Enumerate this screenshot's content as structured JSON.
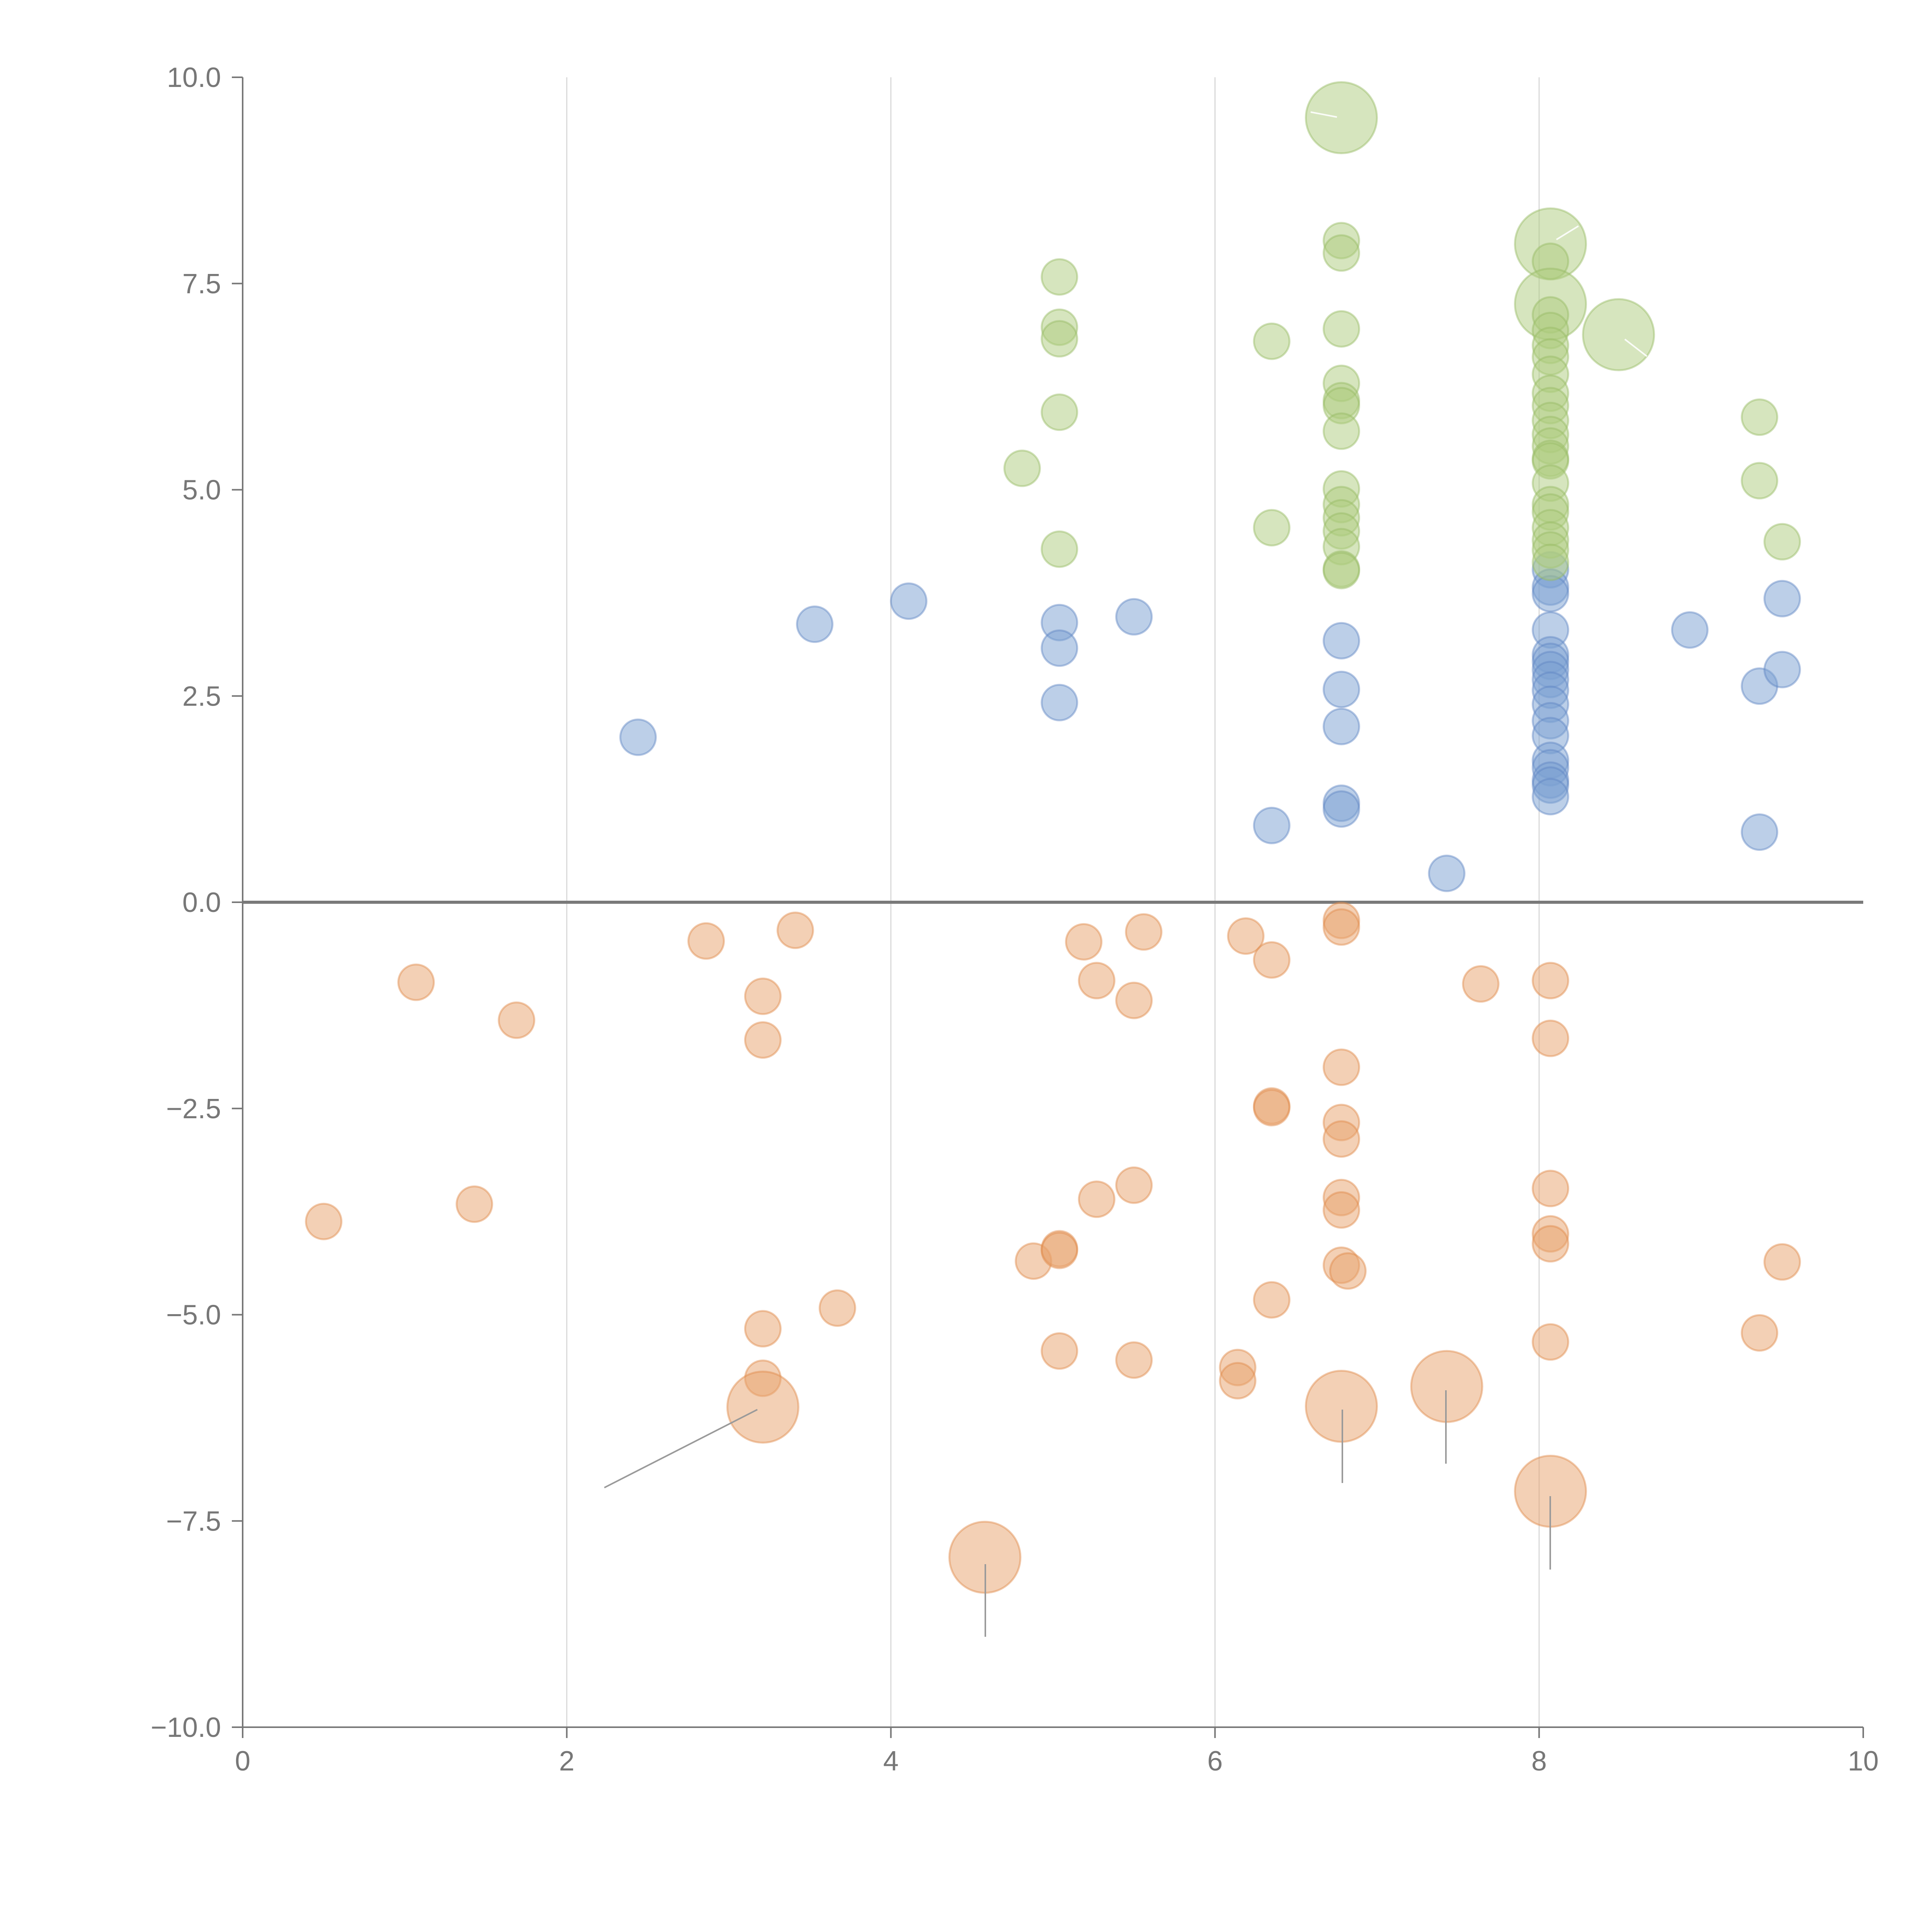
{
  "chart_data": {
    "type": "scatter",
    "title": "",
    "xlabel": "",
    "ylabel": "",
    "xlim": [
      0,
      10
    ],
    "ylim": [
      -10,
      10
    ],
    "grid": "vertical",
    "x_ticks": [
      "0",
      "2",
      "4",
      "6",
      "8",
      "10"
    ],
    "y_ticks": [
      "10.0",
      "7.5",
      "5.0",
      "2.5",
      "0.0",
      "−2.5",
      "−5.0",
      "−7.5",
      "−10.0"
    ],
    "colors": {
      "blue": "#7a9fd1",
      "orange": "#e8a26b",
      "green": "#aecb7e",
      "blue_stroke": "#5f86c4",
      "orange_stroke": "#e0894a",
      "green_stroke": "#97bb63"
    },
    "series": [
      {
        "name": "blue",
        "points": [
          [
            2.44,
            2.0,
            1
          ],
          [
            3.53,
            3.37,
            1
          ],
          [
            4.11,
            3.65,
            1
          ],
          [
            5.04,
            3.39,
            1
          ],
          [
            5.04,
            3.08,
            1
          ],
          [
            5.04,
            2.42,
            1
          ],
          [
            5.5,
            3.46,
            1
          ],
          [
            6.35,
            0.93,
            1
          ],
          [
            6.78,
            3.17,
            1
          ],
          [
            6.78,
            2.58,
            1
          ],
          [
            6.78,
            2.13,
            1
          ],
          [
            6.78,
            1.2,
            1
          ],
          [
            6.78,
            1.13,
            1
          ],
          [
            7.43,
            0.35,
            1
          ],
          [
            8.07,
            4.03,
            1
          ],
          [
            8.07,
            3.82,
            1
          ],
          [
            8.07,
            3.74,
            1
          ],
          [
            8.07,
            3.3,
            1
          ],
          [
            8.07,
            3.0,
            1
          ],
          [
            8.07,
            2.92,
            1
          ],
          [
            8.07,
            2.82,
            1
          ],
          [
            8.07,
            2.7,
            1
          ],
          [
            8.07,
            2.57,
            1
          ],
          [
            8.07,
            2.4,
            1
          ],
          [
            8.07,
            2.2,
            1
          ],
          [
            8.07,
            2.02,
            1
          ],
          [
            8.07,
            1.72,
            1
          ],
          [
            8.07,
            1.63,
            1
          ],
          [
            8.07,
            1.48,
            1
          ],
          [
            8.07,
            1.42,
            1
          ],
          [
            8.07,
            1.28,
            1
          ],
          [
            8.93,
            3.3,
            1
          ],
          [
            9.36,
            2.62,
            1
          ],
          [
            9.36,
            0.85,
            1
          ],
          [
            9.5,
            3.68,
            1
          ],
          [
            9.5,
            2.82,
            1
          ]
        ]
      },
      {
        "name": "orange",
        "points": [
          [
            0.5,
            -3.87,
            1
          ],
          [
            1.07,
            -0.97,
            1
          ],
          [
            1.43,
            -3.66,
            1
          ],
          [
            1.69,
            -1.43,
            1
          ],
          [
            2.86,
            -0.47,
            1
          ],
          [
            3.21,
            -1.14,
            1
          ],
          [
            3.21,
            -1.67,
            1
          ],
          [
            3.41,
            -0.34,
            1
          ],
          [
            3.21,
            -5.17,
            1
          ],
          [
            3.21,
            -5.77,
            1
          ],
          [
            3.21,
            -6.12,
            3
          ],
          [
            3.67,
            -4.92,
            1
          ],
          [
            4.58,
            -7.94,
            3
          ],
          [
            4.88,
            -4.35,
            1
          ],
          [
            5.04,
            -4.2,
            1
          ],
          [
            5.04,
            -4.22,
            1
          ],
          [
            5.04,
            -5.44,
            1
          ],
          [
            5.19,
            -0.48,
            1
          ],
          [
            5.27,
            -0.95,
            1
          ],
          [
            5.27,
            -3.6,
            1
          ],
          [
            5.5,
            -1.19,
            1
          ],
          [
            5.5,
            -3.43,
            1
          ],
          [
            5.5,
            -5.55,
            1
          ],
          [
            5.56,
            -0.36,
            1
          ],
          [
            6.14,
            -5.64,
            1
          ],
          [
            6.14,
            -5.8,
            1
          ],
          [
            6.19,
            -0.41,
            1
          ],
          [
            6.35,
            -0.7,
            1
          ],
          [
            6.35,
            -2.47,
            1
          ],
          [
            6.35,
            -2.49,
            1
          ],
          [
            6.35,
            -4.82,
            1
          ],
          [
            6.78,
            -0.22,
            1
          ],
          [
            6.78,
            -0.3,
            1
          ],
          [
            6.78,
            -2.0,
            1
          ],
          [
            6.78,
            -2.67,
            1
          ],
          [
            6.78,
            -2.87,
            1
          ],
          [
            6.78,
            -3.58,
            1
          ],
          [
            6.78,
            -3.73,
            1
          ],
          [
            6.78,
            -4.4,
            1
          ],
          [
            6.82,
            -4.47,
            1
          ],
          [
            6.78,
            -6.11,
            3
          ],
          [
            7.43,
            -5.87,
            3
          ],
          [
            7.64,
            -0.99,
            1
          ],
          [
            8.07,
            -0.95,
            1
          ],
          [
            8.07,
            -1.65,
            1
          ],
          [
            8.07,
            -3.47,
            1
          ],
          [
            8.07,
            -4.02,
            1
          ],
          [
            8.07,
            -4.14,
            1
          ],
          [
            8.07,
            -5.33,
            1
          ],
          [
            8.07,
            -7.14,
            3
          ],
          [
            9.36,
            -5.22,
            1
          ],
          [
            9.5,
            -4.36,
            1
          ]
        ]
      },
      {
        "name": "green",
        "points": [
          [
            4.81,
            5.26,
            1
          ],
          [
            5.04,
            7.58,
            1
          ],
          [
            5.04,
            6.97,
            1
          ],
          [
            5.04,
            6.83,
            1
          ],
          [
            5.04,
            5.94,
            1
          ],
          [
            5.04,
            4.28,
            1
          ],
          [
            6.35,
            6.8,
            1
          ],
          [
            6.35,
            4.54,
            1
          ],
          [
            6.78,
            9.51,
            3
          ],
          [
            6.78,
            8.02,
            1
          ],
          [
            6.78,
            7.87,
            1
          ],
          [
            6.78,
            6.95,
            1
          ],
          [
            6.78,
            6.29,
            1
          ],
          [
            6.78,
            6.08,
            1
          ],
          [
            6.78,
            6.02,
            1
          ],
          [
            6.78,
            5.71,
            1
          ],
          [
            6.78,
            5.01,
            1
          ],
          [
            6.78,
            4.82,
            1
          ],
          [
            6.78,
            4.66,
            1
          ],
          [
            6.78,
            4.5,
            1
          ],
          [
            6.78,
            4.31,
            1
          ],
          [
            6.78,
            4.04,
            1
          ],
          [
            6.78,
            4.02,
            1
          ],
          [
            8.07,
            7.98,
            3
          ],
          [
            8.07,
            7.77,
            1
          ],
          [
            8.07,
            7.25,
            3
          ],
          [
            8.07,
            7.12,
            1
          ],
          [
            8.07,
            6.93,
            1
          ],
          [
            8.07,
            6.75,
            1
          ],
          [
            8.07,
            6.61,
            1
          ],
          [
            8.07,
            6.4,
            1
          ],
          [
            8.07,
            6.17,
            1
          ],
          [
            8.07,
            6.02,
            1
          ],
          [
            8.07,
            5.84,
            1
          ],
          [
            8.07,
            5.67,
            1
          ],
          [
            8.07,
            5.53,
            1
          ],
          [
            8.07,
            5.38,
            1
          ],
          [
            8.07,
            5.35,
            1
          ],
          [
            8.07,
            5.08,
            1
          ],
          [
            8.07,
            4.82,
            1
          ],
          [
            8.07,
            4.73,
            1
          ],
          [
            8.07,
            4.54,
            1
          ],
          [
            8.07,
            4.39,
            1
          ],
          [
            8.07,
            4.27,
            1
          ],
          [
            8.07,
            4.12,
            1
          ],
          [
            8.49,
            6.88,
            3
          ],
          [
            9.36,
            5.88,
            1
          ],
          [
            9.36,
            5.11,
            1
          ],
          [
            9.5,
            4.37,
            1
          ]
        ]
      }
    ]
  }
}
